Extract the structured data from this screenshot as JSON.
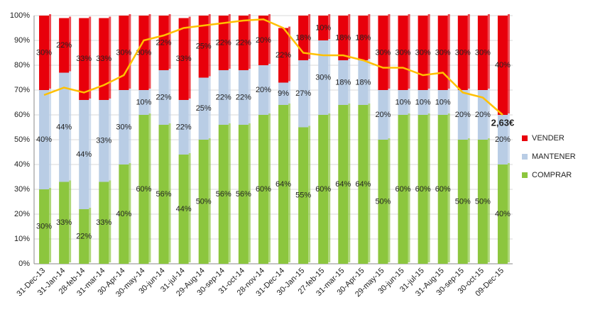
{
  "chart_data": {
    "type": "stacked-bar",
    "categories": [
      "31-Dec-13",
      "31-Jan-14",
      "28-feb-14",
      "31-mar-14",
      "30-Apr-14",
      "30-may-14",
      "30-jun-14",
      "31-jul-14",
      "29-Aug-14",
      "30-sep-14",
      "31-oct-14",
      "28-nov-14",
      "31-Dec-14",
      "30-Jan-15",
      "27-feb-15",
      "31-mar-15",
      "30-Apr-15",
      "29-may-15",
      "30-jun-15",
      "31-jul-15",
      "31-Aug-15",
      "30-sep-15",
      "30-oct-15",
      "09-Dec-15"
    ],
    "series": [
      {
        "name": "COMPRAR",
        "color": "#8cc63e",
        "values": [
          30,
          33,
          22,
          33,
          40,
          60,
          56,
          44,
          50,
          56,
          56,
          60,
          64,
          55,
          60,
          64,
          64,
          50,
          60,
          60,
          60,
          50,
          50,
          40
        ],
        "value_labels": [
          "30%",
          "33%",
          "22%",
          "33%",
          "40%",
          "60%",
          "56%",
          "44%",
          "50%",
          "56%",
          "56%",
          "60%",
          "64%",
          "55%",
          "60%",
          "64%",
          "64%",
          "50%",
          "60%",
          "60%",
          "60%",
          "50%",
          "50%",
          "40%"
        ]
      },
      {
        "name": "MANTENER",
        "color": "#b9cde5",
        "values": [
          40,
          44,
          44,
          33,
          30,
          10,
          22,
          22,
          25,
          22,
          22,
          20,
          9,
          27,
          30,
          18,
          18,
          20,
          10,
          10,
          10,
          20,
          20,
          20
        ],
        "value_labels": [
          "40%",
          "44%",
          "44%",
          "33%",
          "30%",
          "10%",
          "22%",
          "22%",
          "25%",
          "22%",
          "22%",
          "20%",
          "9%",
          "27%",
          "30%",
          "18%",
          "18%",
          "20%",
          "10%",
          "10%",
          "10%",
          "20%",
          "20%",
          "20%"
        ]
      },
      {
        "name": "VENDER",
        "color": "#e8000b",
        "values": [
          30,
          22,
          33,
          33,
          30,
          30,
          22,
          33,
          25,
          22,
          22,
          20,
          22,
          18,
          10,
          18,
          18,
          30,
          30,
          30,
          30,
          30,
          30,
          40
        ],
        "value_labels": [
          "30%",
          "22%",
          "33%",
          "33%",
          "30%",
          "30%",
          "22%",
          "33%",
          "25%",
          "22%",
          "22%",
          "20%",
          "22%",
          "18%",
          "10%",
          "18%",
          "18%",
          "30%",
          "30%",
          "30%",
          "30%",
          "30%",
          "30%",
          "40%"
        ]
      }
    ],
    "line": {
      "color": "#ffc000",
      "values": [
        68,
        71,
        69,
        72,
        76,
        90,
        92,
        95,
        96,
        97,
        98,
        98.5,
        95,
        85,
        84,
        84,
        82,
        79,
        79,
        76,
        77,
        69,
        67,
        60
      ],
      "annotation": "2,63€"
    },
    "ylim": [
      0,
      100
    ],
    "yticks": [
      {
        "value": 0,
        "label": "0%"
      },
      {
        "value": 10,
        "label": "10%"
      },
      {
        "value": 20,
        "label": "20%"
      },
      {
        "value": 30,
        "label": "30%"
      },
      {
        "value": 40,
        "label": "40%"
      },
      {
        "value": 50,
        "label": "50%"
      },
      {
        "value": 60,
        "label": "60%"
      },
      {
        "value": 70,
        "label": "70%"
      },
      {
        "value": 80,
        "label": "80%"
      },
      {
        "value": 90,
        "label": "90%"
      },
      {
        "value": 100,
        "label": "100%"
      }
    ],
    "legend": "right"
  }
}
